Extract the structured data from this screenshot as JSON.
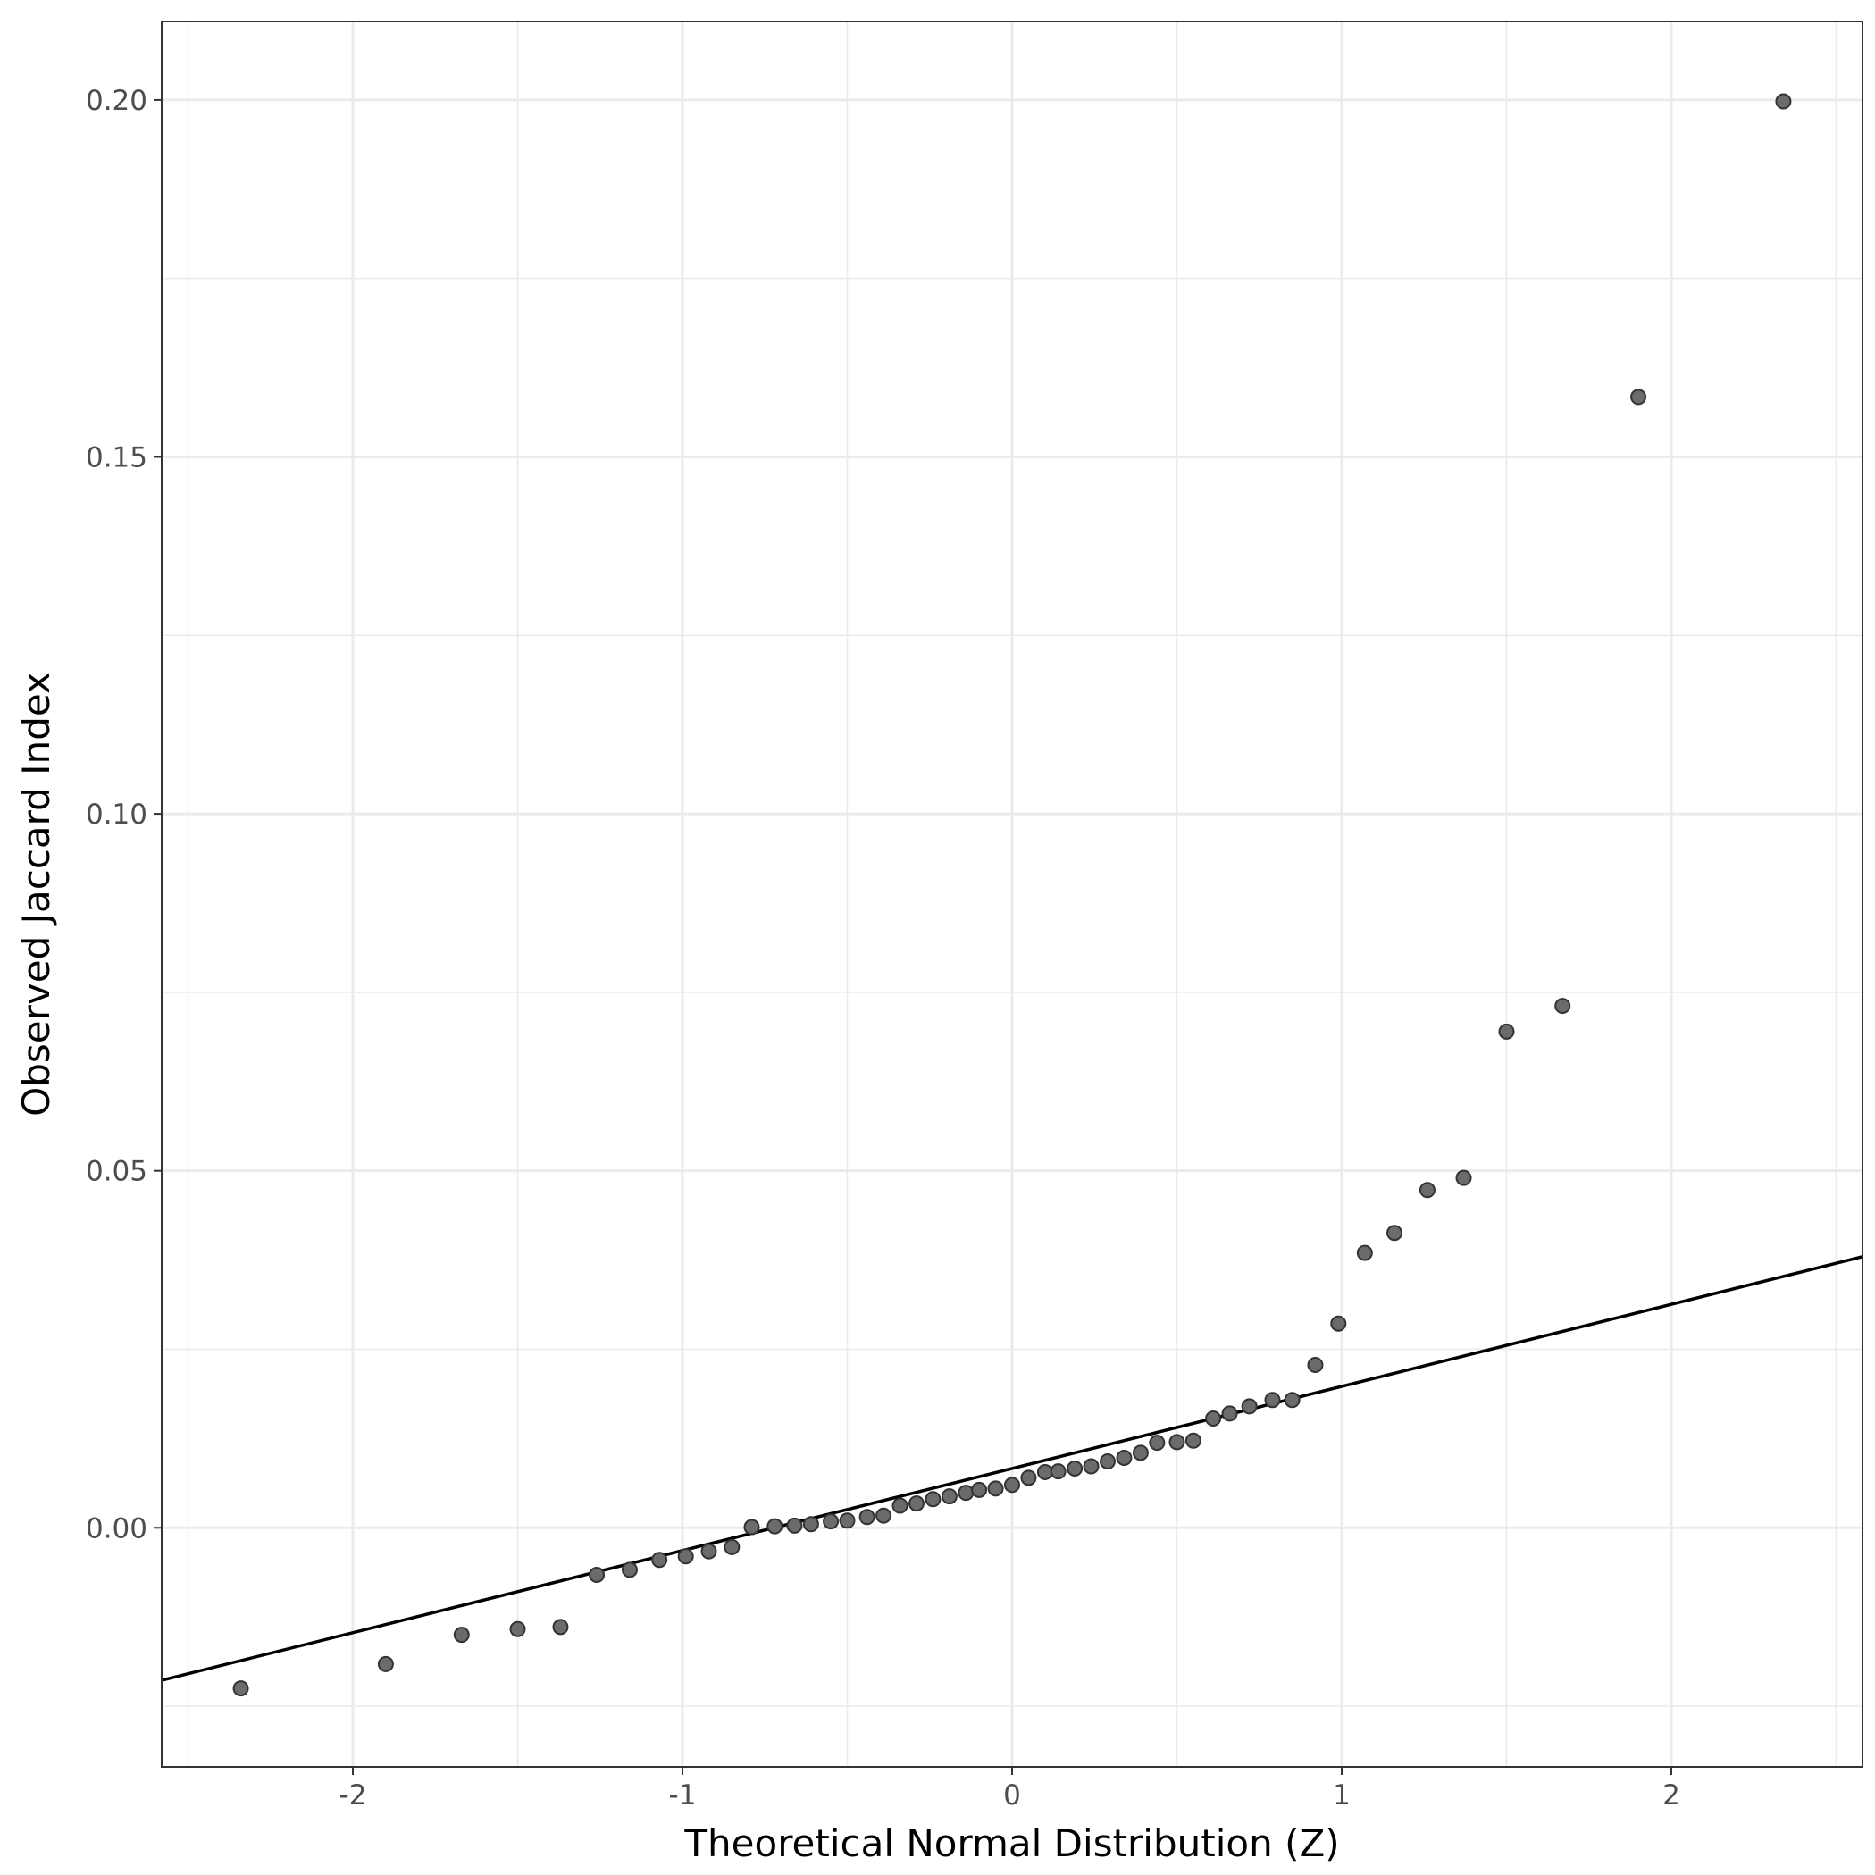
{
  "chart_data": {
    "type": "scatter",
    "xlabel": "Theoretical Normal Distribution (Z)",
    "ylabel": "Observed Jaccard Index",
    "xlim": [
      -2.58,
      2.58
    ],
    "ylim": [
      -0.0335,
      0.211
    ],
    "x_ticks": [
      {
        "value": -2,
        "label": "-2"
      },
      {
        "value": -1,
        "label": "-1"
      },
      {
        "value": 0,
        "label": "0"
      },
      {
        "value": 1,
        "label": "1"
      },
      {
        "value": 2,
        "label": "2"
      }
    ],
    "y_ticks": [
      {
        "value": 0.0,
        "label": "0.00"
      },
      {
        "value": 0.05,
        "label": "0.05"
      },
      {
        "value": 0.1,
        "label": "0.10"
      },
      {
        "value": 0.15,
        "label": "0.15"
      },
      {
        "value": 0.2,
        "label": "0.20"
      }
    ],
    "x_minor_ticks": [
      -2.5,
      -1.5,
      -0.5,
      0.5,
      1.5,
      2.5
    ],
    "y_minor_ticks": [
      -0.025,
      0.025,
      0.075,
      0.125,
      0.175
    ],
    "grid": true,
    "reference_line": {
      "intercept": 0.0083,
      "slope": 0.0115
    },
    "points": [
      {
        "x": -2.34,
        "y": -0.0225
      },
      {
        "x": -1.9,
        "y": -0.0191
      },
      {
        "x": -1.67,
        "y": -0.015
      },
      {
        "x": -1.5,
        "y": -0.0142
      },
      {
        "x": -1.37,
        "y": -0.0139
      },
      {
        "x": -1.26,
        "y": -0.0066
      },
      {
        "x": -1.16,
        "y": -0.0059
      },
      {
        "x": -1.07,
        "y": -0.0045
      },
      {
        "x": -0.99,
        "y": -0.004
      },
      {
        "x": -0.92,
        "y": -0.0033
      },
      {
        "x": -0.85,
        "y": -0.0027
      },
      {
        "x": -0.79,
        "y": 0.0001
      },
      {
        "x": -0.72,
        "y": 0.0002
      },
      {
        "x": -0.66,
        "y": 0.0003
      },
      {
        "x": -0.61,
        "y": 0.0005
      },
      {
        "x": -0.55,
        "y": 0.0009
      },
      {
        "x": -0.5,
        "y": 0.001
      },
      {
        "x": -0.44,
        "y": 0.0015
      },
      {
        "x": -0.39,
        "y": 0.0017
      },
      {
        "x": -0.34,
        "y": 0.0031
      },
      {
        "x": -0.29,
        "y": 0.0034
      },
      {
        "x": -0.24,
        "y": 0.004
      },
      {
        "x": -0.19,
        "y": 0.0044
      },
      {
        "x": -0.14,
        "y": 0.0049
      },
      {
        "x": -0.1,
        "y": 0.0053
      },
      {
        "x": -0.05,
        "y": 0.0055
      },
      {
        "x": 0.0,
        "y": 0.006
      },
      {
        "x": 0.05,
        "y": 0.007
      },
      {
        "x": 0.1,
        "y": 0.0078
      },
      {
        "x": 0.14,
        "y": 0.0079
      },
      {
        "x": 0.19,
        "y": 0.0083
      },
      {
        "x": 0.24,
        "y": 0.0086
      },
      {
        "x": 0.29,
        "y": 0.0093
      },
      {
        "x": 0.34,
        "y": 0.0098
      },
      {
        "x": 0.39,
        "y": 0.0105
      },
      {
        "x": 0.44,
        "y": 0.0119
      },
      {
        "x": 0.5,
        "y": 0.012
      },
      {
        "x": 0.55,
        "y": 0.0122
      },
      {
        "x": 0.61,
        "y": 0.0153
      },
      {
        "x": 0.66,
        "y": 0.016
      },
      {
        "x": 0.72,
        "y": 0.017
      },
      {
        "x": 0.79,
        "y": 0.0179
      },
      {
        "x": 0.85,
        "y": 0.0179
      },
      {
        "x": 0.92,
        "y": 0.0228
      },
      {
        "x": 0.99,
        "y": 0.0286
      },
      {
        "x": 1.07,
        "y": 0.0385
      },
      {
        "x": 1.16,
        "y": 0.0413
      },
      {
        "x": 1.26,
        "y": 0.0473
      },
      {
        "x": 1.37,
        "y": 0.049
      },
      {
        "x": 1.5,
        "y": 0.0695
      },
      {
        "x": 1.67,
        "y": 0.0731
      },
      {
        "x": 1.9,
        "y": 0.1584
      },
      {
        "x": 2.34,
        "y": 0.1998
      }
    ]
  }
}
